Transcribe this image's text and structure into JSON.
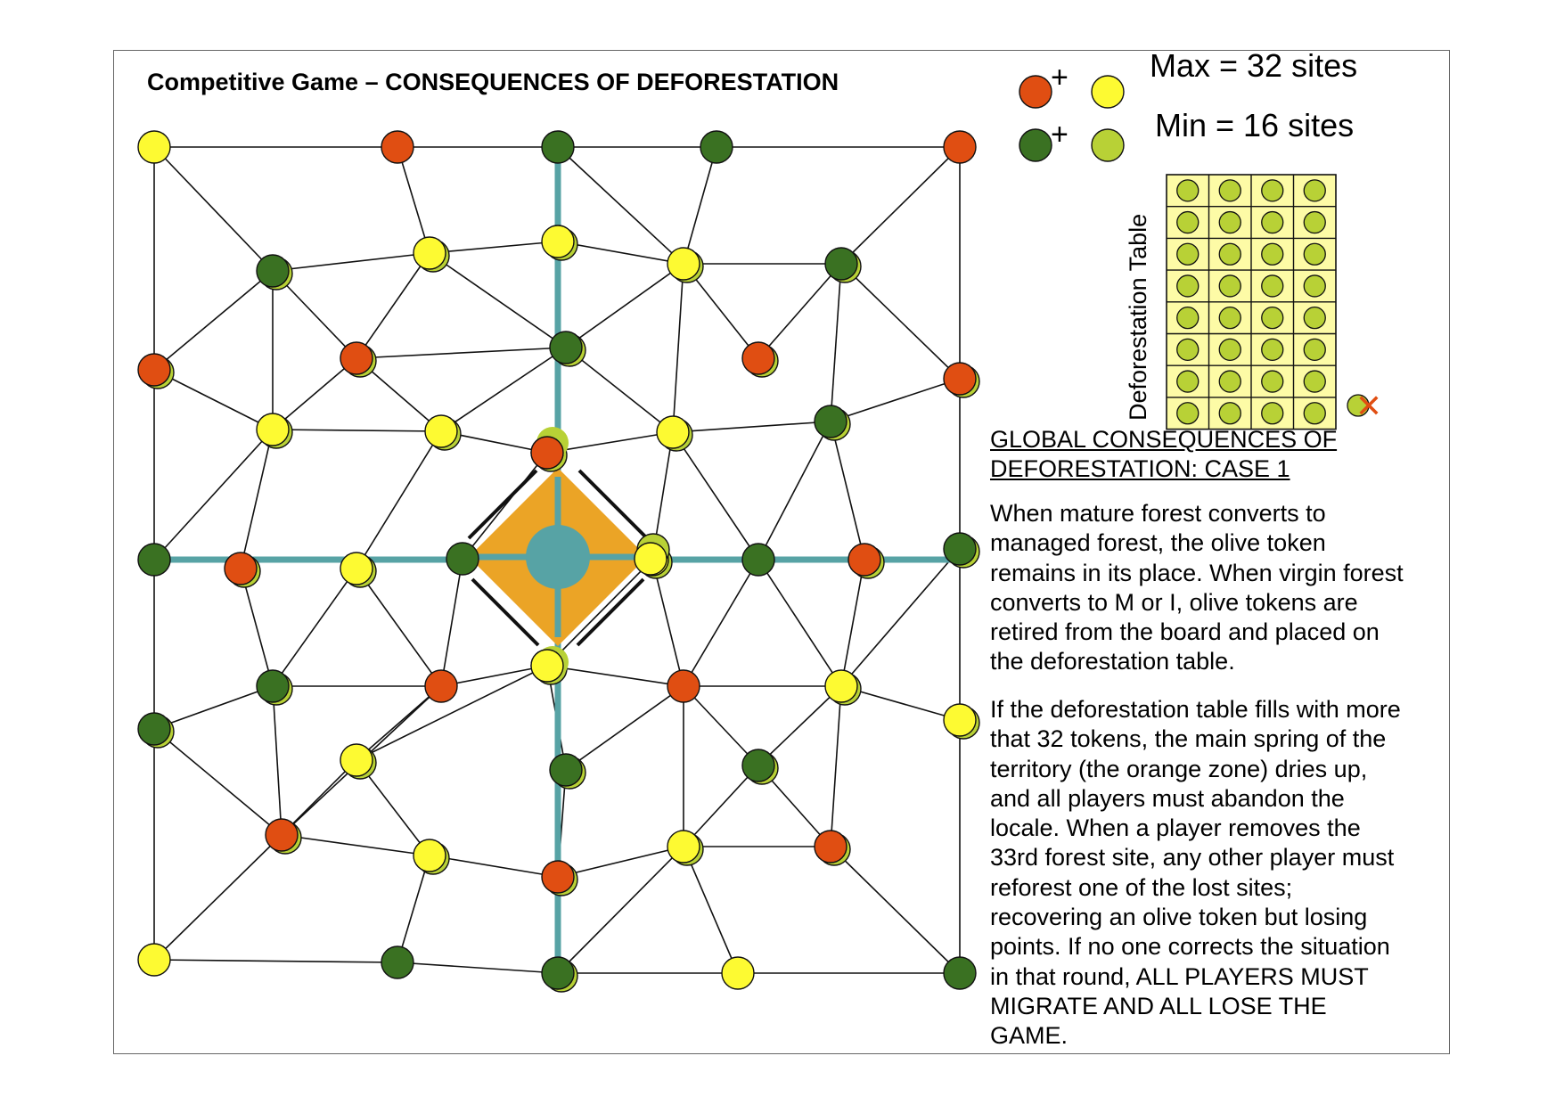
{
  "title": "Competitive Game – CONSEQUENCES OF DEFORESTATION",
  "colors": {
    "red": "#e04e12",
    "yellow": "#fdfa32",
    "dark_green": "#3a7122",
    "olive": "#b8d136",
    "teal": "#57a3a5",
    "orange": "#eba426",
    "table_fill": "#fdfba6"
  },
  "legend": {
    "plus_1": "+",
    "plus_2": "+",
    "max_text": "Max = 32 sites",
    "min_text": "Min = 16 sites"
  },
  "deforestation_table": {
    "label": "Deforestation Table",
    "rows": 8,
    "cols": 4,
    "extra_token": "olive",
    "overflow_mark": "✕"
  },
  "rules": {
    "heading_line1": "GLOBAL CONSEQUENCES OF",
    "heading_line2": "DEFORESTATION: CASE 1",
    "para1": [
      "When mature forest converts to",
      "managed forest, the olive token",
      "remains in its place.  When virgin forest",
      "converts to M or I, olive tokens are",
      "retired from the board and placed on",
      "the deforestation table."
    ],
    "para2": [
      "If the deforestation table fills with more",
      "that 32 tokens, the main spring of the",
      "territory (the orange zone) dries up,",
      "and all players must abandon the",
      "locale.  When a player removes the",
      "33rd forest site, any other player must",
      "reforest one of the lost sites;",
      "recovering an olive token but losing",
      "points.  If no one corrects the situation",
      "in that round, ALL PLAYERS MUST",
      "MIGRATE AND ALL LOSE THE",
      "GAME."
    ]
  },
  "board": {
    "tokens": [
      [
        "yellow",
        null
      ],
      [
        "red",
        null
      ],
      [
        "dark_green",
        null
      ],
      [
        "dark_green",
        null
      ],
      [
        "red",
        null
      ],
      [
        "dark_green",
        "olive"
      ],
      [
        "yellow",
        "olive"
      ],
      [
        "yellow",
        "olive"
      ],
      [
        "yellow",
        "olive"
      ],
      [
        "dark_green",
        "olive"
      ],
      [
        "red",
        "olive"
      ],
      [
        "red",
        "olive"
      ],
      [
        "dark_green",
        "olive"
      ],
      [
        "red",
        "olive"
      ],
      [
        "red",
        "olive"
      ],
      [
        "yellow",
        "olive"
      ],
      [
        "yellow",
        "olive"
      ],
      [
        "red",
        "olive"
      ],
      [
        "yellow",
        "olive"
      ],
      [
        "dark_green",
        "olive"
      ],
      [
        "dark_green",
        null
      ],
      [
        "red",
        "olive"
      ],
      [
        "yellow",
        "olive"
      ],
      [
        "dark_green",
        null
      ],
      [
        "yellow",
        "olive"
      ],
      [
        "dark_green",
        null
      ],
      [
        "red",
        "olive"
      ],
      [
        "dark_green",
        "olive"
      ],
      [
        "dark_green",
        "olive"
      ],
      [
        "red",
        null
      ],
      [
        "yellow",
        "olive"
      ],
      [
        "red",
        null
      ],
      [
        "yellow",
        "olive"
      ],
      [
        "dark_green",
        "olive"
      ],
      [
        "yellow",
        "olive"
      ],
      [
        "dark_green",
        "olive"
      ],
      [
        "dark_green",
        "olive"
      ],
      [
        "yellow",
        "olive"
      ],
      [
        "red",
        "olive"
      ],
      [
        "yellow",
        "olive"
      ],
      [
        "red",
        "olive"
      ],
      [
        "yellow",
        "olive"
      ],
      [
        "red",
        "olive"
      ],
      [
        "yellow",
        null
      ],
      [
        "dark_green",
        null
      ],
      [
        "dark_green",
        "olive"
      ],
      [
        "yellow",
        null
      ],
      [
        "dark_green",
        null
      ]
    ]
  }
}
